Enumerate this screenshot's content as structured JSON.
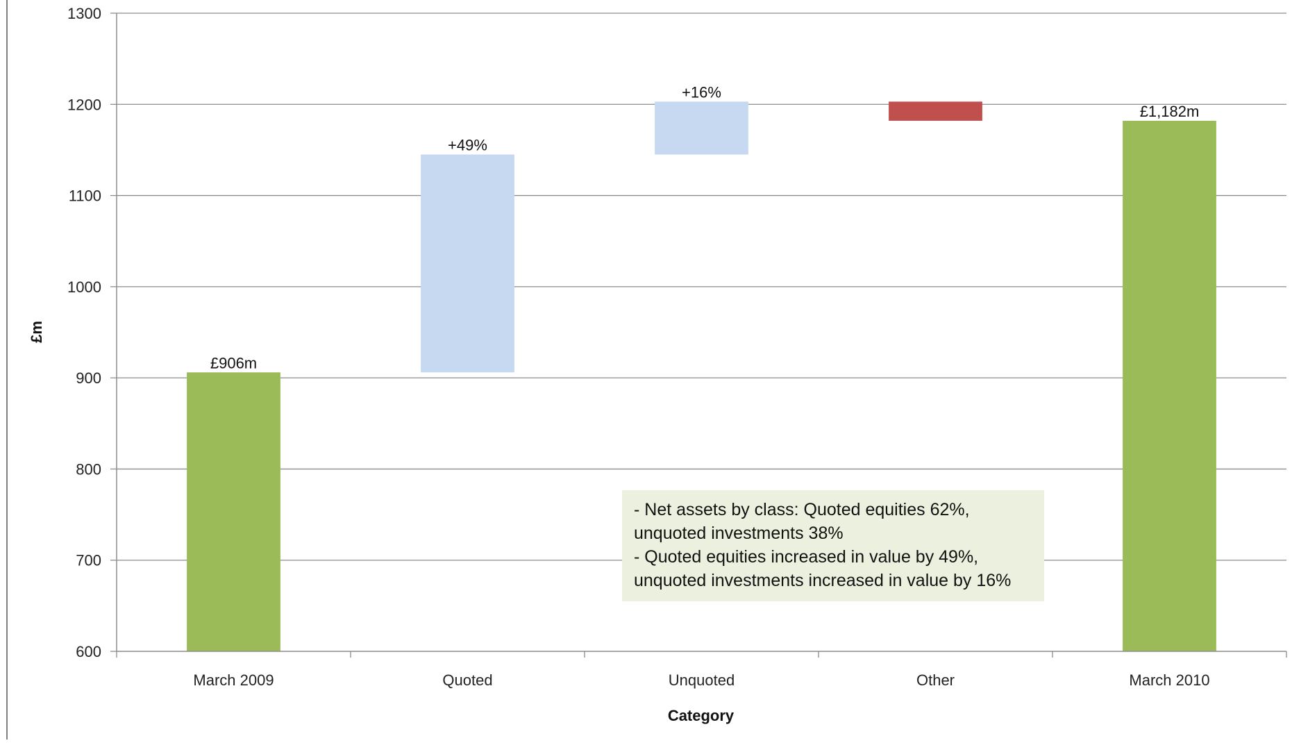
{
  "chart_data": {
    "type": "bar",
    "subtype": "waterfall",
    "title": "",
    "xlabel": "Category",
    "ylabel": "£m",
    "ylim": [
      600,
      1300
    ],
    "yticks": [
      600,
      700,
      800,
      900,
      1000,
      1100,
      1200,
      1300
    ],
    "grid": true,
    "categories": [
      "March 2009",
      "Quoted",
      "Unquoted",
      "Other",
      "March 2010"
    ],
    "bars": [
      {
        "category": "March 2009",
        "kind": "total",
        "start": 600,
        "end": 906,
        "label": "£906m",
        "color": "#9bbb59"
      },
      {
        "category": "Quoted",
        "kind": "increase",
        "start": 906,
        "end": 1145,
        "label": "+49%",
        "color": "#c6d9f1"
      },
      {
        "category": "Unquoted",
        "kind": "increase",
        "start": 1145,
        "end": 1203,
        "label": "+16%",
        "color": "#c6d9f1"
      },
      {
        "category": "Other",
        "kind": "decrease",
        "start": 1203,
        "end": 1182,
        "label": "",
        "color": "#c0504d"
      },
      {
        "category": "March 2010",
        "kind": "total",
        "start": 600,
        "end": 1182,
        "label": "£1,182m",
        "color": "#9bbb59"
      }
    ],
    "annotation": {
      "lines": [
        "- Net assets by class: Quoted equities 62%,",
        "unquoted investments 38%",
        "- Quoted equities increased in value by 49%,",
        "unquoted investments increased in value by 16%"
      ],
      "background": "#ebf1de"
    }
  }
}
